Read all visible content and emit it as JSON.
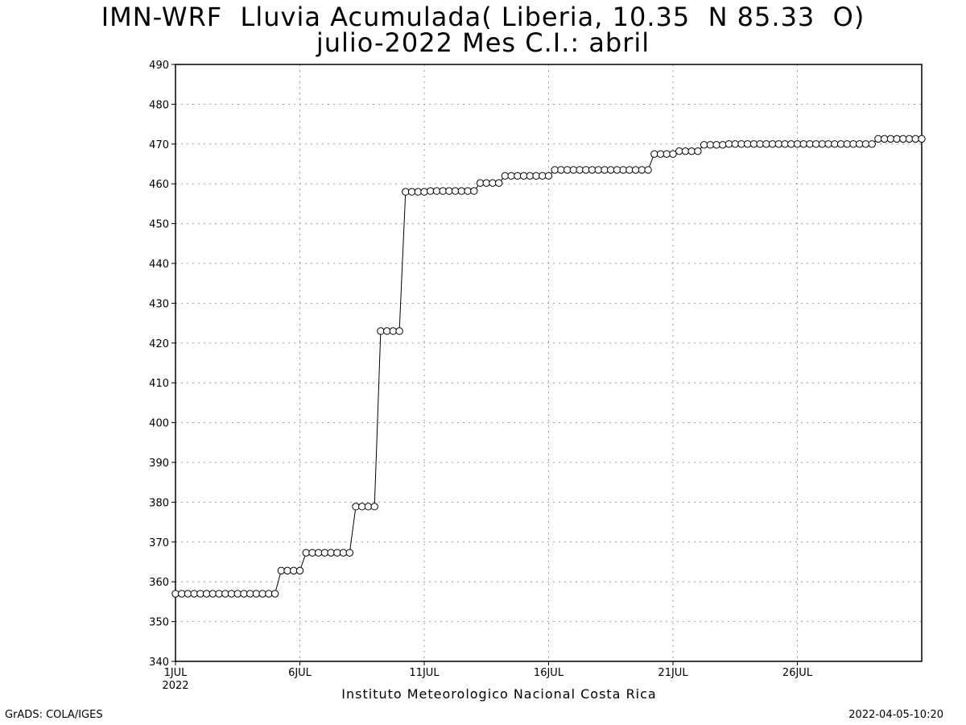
{
  "title_line1": "IMN-WRF  Lluvia Acumulada( Liberia, 10.35  N 85.33  O)",
  "title_line2": "julio-2022 Mes C.I.: abril",
  "footer_left": "GrADS: COLA/IGES",
  "footer_right": "2022-04-05-10:20",
  "chart_data": {
    "type": "line",
    "title": "IMN-WRF  Lluvia Acumulada( Liberia, 10.35  N 85.33  O) julio-2022 Mes C.I.: abril",
    "xlabel": "Instituto Meteorologico Nacional Costa Rica",
    "ylabel": "",
    "ylim": [
      340,
      490
    ],
    "yticks": [
      340,
      350,
      360,
      370,
      380,
      390,
      400,
      410,
      420,
      430,
      440,
      450,
      460,
      470,
      480,
      490
    ],
    "xlim": [
      1,
      31
    ],
    "xticks": [
      {
        "day": 1,
        "label": "1JUL",
        "sublabel": "2022"
      },
      {
        "day": 6,
        "label": "6JUL",
        "sublabel": ""
      },
      {
        "day": 11,
        "label": "11JUL",
        "sublabel": ""
      },
      {
        "day": 16,
        "label": "16JUL",
        "sublabel": ""
      },
      {
        "day": 21,
        "label": "21JUL",
        "sublabel": ""
      },
      {
        "day": 26,
        "label": "26JUL",
        "sublabel": ""
      }
    ],
    "grid": true,
    "marker": "open-circle",
    "x": [
      1,
      1.25,
      1.5,
      1.75,
      2,
      2.25,
      2.5,
      2.75,
      3,
      3.25,
      3.5,
      3.75,
      4,
      4.25,
      4.5,
      4.75,
      5,
      5.25,
      5.5,
      5.75,
      6,
      6.25,
      6.5,
      6.75,
      7,
      7.25,
      7.5,
      7.75,
      8,
      8.25,
      8.5,
      8.75,
      9,
      9.25,
      9.5,
      9.75,
      10,
      10.25,
      10.5,
      10.75,
      11,
      11.25,
      11.5,
      11.75,
      12,
      12.25,
      12.5,
      12.75,
      13,
      13.25,
      13.5,
      13.75,
      14,
      14.25,
      14.5,
      14.75,
      15,
      15.25,
      15.5,
      15.75,
      16,
      16.25,
      16.5,
      16.75,
      17,
      17.25,
      17.5,
      17.75,
      18,
      18.25,
      18.5,
      18.75,
      19,
      19.25,
      19.5,
      19.75,
      20,
      20.25,
      20.5,
      20.75,
      21,
      21.25,
      21.5,
      21.75,
      22,
      22.25,
      22.5,
      22.75,
      23,
      23.25,
      23.5,
      23.75,
      24,
      24.25,
      24.5,
      24.75,
      25,
      25.25,
      25.5,
      25.75,
      26,
      26.25,
      26.5,
      26.75,
      27,
      27.25,
      27.5,
      27.75,
      28,
      28.25,
      28.5,
      28.75,
      29,
      29.25,
      29.5,
      29.75,
      30,
      30.25,
      30.5,
      30.75,
      31
    ],
    "series": [
      {
        "values": [
          357,
          357,
          357,
          357,
          357,
          357,
          357,
          357,
          357,
          357,
          357,
          357,
          357,
          357,
          357,
          357,
          357,
          362.8,
          362.8,
          362.8,
          362.8,
          367.3,
          367.3,
          367.3,
          367.3,
          367.3,
          367.3,
          367.3,
          367.3,
          378.9,
          378.9,
          378.9,
          378.9,
          423,
          423,
          423,
          423,
          458,
          458,
          458,
          458,
          458.2,
          458.2,
          458.2,
          458.2,
          458.2,
          458.2,
          458.2,
          458.2,
          460.2,
          460.2,
          460.2,
          460.2,
          462,
          462,
          462,
          462,
          462,
          462,
          462,
          462,
          463.5,
          463.5,
          463.5,
          463.5,
          463.5,
          463.5,
          463.5,
          463.5,
          463.5,
          463.5,
          463.5,
          463.5,
          463.5,
          463.5,
          463.5,
          463.5,
          467.5,
          467.5,
          467.5,
          467.5,
          468.2,
          468.2,
          468.2,
          468.2,
          469.8,
          469.8,
          469.8,
          469.8,
          470,
          470,
          470,
          470,
          470,
          470,
          470,
          470,
          470,
          470,
          470,
          470,
          470,
          470,
          470,
          470,
          470,
          470,
          470,
          470,
          470,
          470,
          470,
          470,
          471.3,
          471.3,
          471.3,
          471.3,
          471.3,
          471.3,
          471.3,
          471.3
        ]
      }
    ]
  }
}
